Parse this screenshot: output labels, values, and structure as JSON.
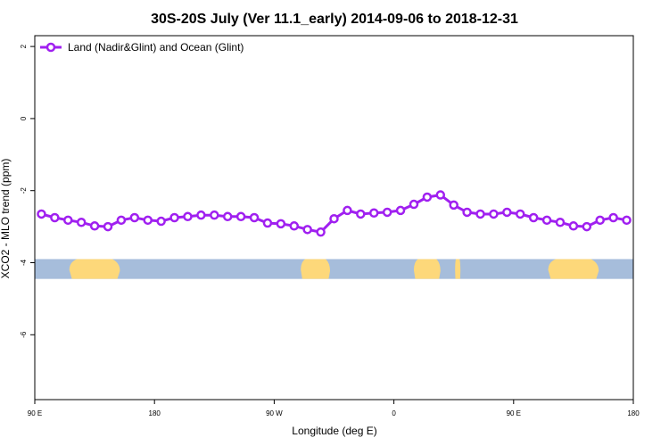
{
  "chart_data": {
    "type": "line",
    "title": "30S-20S July (Ver 11.1_early)   2014-09-06 to 2018-12-31",
    "xlabel": "Longitude (deg E)",
    "ylabel": "XCO2 - MLO trend (ppm)",
    "x_ticks": [
      {
        "value": 0,
        "label": "90 E"
      },
      {
        "value": 90,
        "label": "180"
      },
      {
        "value": 180,
        "label": "90 W"
      },
      {
        "value": 270,
        "label": "0"
      },
      {
        "value": 360,
        "label": "90 E"
      },
      {
        "value": 450,
        "label": "180"
      }
    ],
    "y_ticks": [
      {
        "value": 2,
        "label": "2"
      },
      {
        "value": 0,
        "label": "0"
      },
      {
        "value": -2,
        "label": "-2"
      },
      {
        "value": -4,
        "label": "-4"
      },
      {
        "value": -6,
        "label": "-6"
      }
    ],
    "xlim": [
      0,
      450
    ],
    "ylim": [
      -7.8,
      2.3
    ],
    "grid": false,
    "legend_position": "top-left",
    "series": [
      {
        "name": "Land (Nadir&Glint) and Ocean (Glint)",
        "color": "#a020f0",
        "x": [
          5,
          15,
          25,
          35,
          45,
          55,
          65,
          75,
          85,
          95,
          105,
          115,
          125,
          135,
          145,
          155,
          165,
          175,
          185,
          195,
          205,
          215,
          225,
          235,
          245,
          255,
          265,
          275,
          285,
          295,
          305,
          315,
          325,
          335,
          345,
          355,
          365,
          375,
          385,
          395,
          405,
          415,
          425,
          435,
          445
        ],
        "y": [
          -2.65,
          -2.75,
          -2.82,
          -2.88,
          -2.98,
          -3.0,
          -2.82,
          -2.75,
          -2.82,
          -2.85,
          -2.75,
          -2.72,
          -2.68,
          -2.68,
          -2.72,
          -2.72,
          -2.75,
          -2.9,
          -2.92,
          -2.98,
          -3.08,
          -3.15,
          -2.78,
          -2.55,
          -2.65,
          -2.62,
          -2.6,
          -2.55,
          -2.38,
          -2.18,
          -2.12,
          -2.4,
          -2.6,
          -2.65,
          -2.65,
          -2.6,
          -2.65,
          -2.75,
          -2.82,
          -2.88,
          -2.98,
          -3.0,
          -2.82,
          -2.75,
          -2.82
        ]
      }
    ],
    "land_ocean_band": {
      "y_range": [
        -4.45,
        -3.9
      ],
      "ocean_color": "#a6bddb",
      "land_color": "#fdd87a",
      "land_segments_x": [
        [
          26,
          64
        ],
        [
          200,
          222
        ],
        [
          285,
          305
        ],
        [
          316,
          320
        ],
        [
          386,
          424
        ]
      ]
    }
  }
}
